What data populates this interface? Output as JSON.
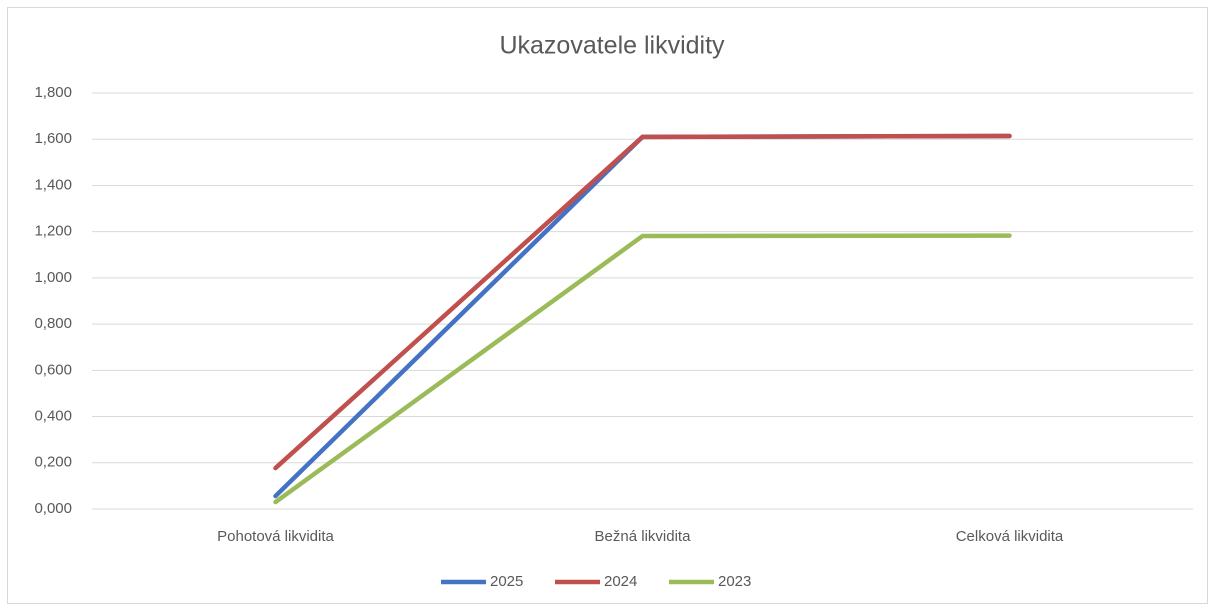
{
  "chart_data": {
    "type": "line",
    "title": "Ukazovatele likvidity",
    "categories": [
      "Pohotová likvidita",
      "Bežná likvidita",
      "Celková likvidita"
    ],
    "series": [
      {
        "name": "2025",
        "color": "#4472c4",
        "values": [
          0.056,
          1.61,
          1.614
        ]
      },
      {
        "name": "2024",
        "color": "#c0504d",
        "values": [
          0.177,
          1.61,
          1.614
        ]
      },
      {
        "name": "2023",
        "color": "#9bbb59",
        "values": [
          0.03,
          1.181,
          1.183
        ]
      }
    ],
    "ylim": [
      0,
      1.8
    ],
    "yticks": [
      {
        "value": 0,
        "label": "0,000"
      },
      {
        "value": 0.2,
        "label": "0,200"
      },
      {
        "value": 0.4,
        "label": "0,400"
      },
      {
        "value": 0.6,
        "label": "0,600"
      },
      {
        "value": 0.8,
        "label": "0,800"
      },
      {
        "value": 1.0,
        "label": "1,000"
      },
      {
        "value": 1.2,
        "label": "1,200"
      },
      {
        "value": 1.4,
        "label": "1,400"
      },
      {
        "value": 1.6,
        "label": "1,600"
      },
      {
        "value": 1.8,
        "label": "1,800"
      }
    ],
    "grid": true,
    "legend": "bottom"
  }
}
